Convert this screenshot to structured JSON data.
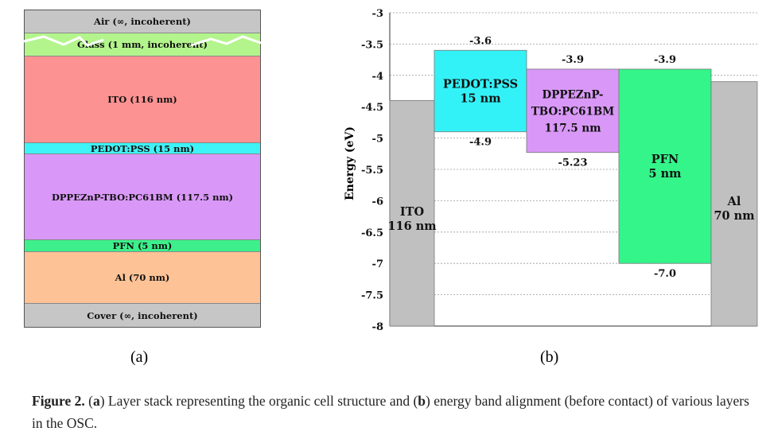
{
  "panel_a": {
    "layers": [
      {
        "label": "Air (∞, incoherent)",
        "color": "#c6c6c6",
        "thickness_px": 30
      },
      {
        "label": "Glass (1 mm, incoherent)",
        "color": "#b3f58c",
        "thickness_px": 29
      },
      {
        "label": "ITO (116 nm)",
        "color": "#fd9292",
        "thickness_px": 109
      },
      {
        "label": "PEDOT:PSS (15 nm)",
        "color": "#3ff2f6",
        "thickness_px": 14
      },
      {
        "label": "DPPEZnP-TBO:PC61BM (117.5 nm)",
        "color": "#d998f7",
        "thickness_px": 108
      },
      {
        "label": "PFN (5 nm)",
        "color": "#3df08b",
        "thickness_px": 15
      },
      {
        "label": "Al (70 nm)",
        "color": "#fdc396",
        "thickness_px": 65
      },
      {
        "label": "Cover (∞, incoherent)",
        "color": "#c6c6c6",
        "thickness_px": 30
      }
    ],
    "sublabel": "(a)"
  },
  "panel_b": {
    "sublabel": "(b)"
  },
  "chart_data": {
    "type": "bar",
    "ylabel": "Energy (eV)",
    "ylim": [
      -8,
      -3
    ],
    "yticks": [
      -3,
      -3.5,
      -4,
      -4.5,
      -5,
      -5.5,
      -6,
      -6.5,
      -7,
      -7.5,
      -8
    ],
    "ytick_labels": [
      "-3",
      "-3.5",
      "-4",
      "-4.5",
      "-5",
      "-5.5",
      "-6",
      "-6.5",
      "-7",
      "-7.5",
      "-8"
    ],
    "grid": "dotted horizontal",
    "bars": [
      {
        "label_lines": [
          "ITO",
          "116 nm"
        ],
        "top": -4.4,
        "bottom": -8,
        "color": "#c0c0c0",
        "top_label": "",
        "bottom_label": ""
      },
      {
        "label_lines": [
          "PEDOT:PSS",
          "15 nm"
        ],
        "top": -3.6,
        "bottom": -4.9,
        "color": "#33f2f7",
        "top_label": "-3.6",
        "bottom_label": "-4.9"
      },
      {
        "label_lines": [
          "DPPEZnP-",
          "TBO:PC61BM",
          "117.5 nm"
        ],
        "top": -3.9,
        "bottom": -5.23,
        "color": "#d998f7",
        "top_label": "-3.9",
        "bottom_label": "-5.23"
      },
      {
        "label_lines": [
          "PFN",
          "5 nm"
        ],
        "top": -3.9,
        "bottom": -7.0,
        "color": "#33f58a",
        "top_label": "-3.9",
        "bottom_label": "-7.0"
      },
      {
        "label_lines": [
          "Al",
          "70 nm"
        ],
        "top": -4.1,
        "bottom": -8,
        "color": "#c0c0c0",
        "top_label": "",
        "bottom_label": ""
      }
    ]
  },
  "caption": {
    "figure_label": "Figure 2.",
    "part1": " (",
    "a": "a",
    "part2": ") Layer stack representing the organic cell structure and (",
    "b": "b",
    "part3": ") energy band alignment (before contact) of various layers in the OSC."
  }
}
